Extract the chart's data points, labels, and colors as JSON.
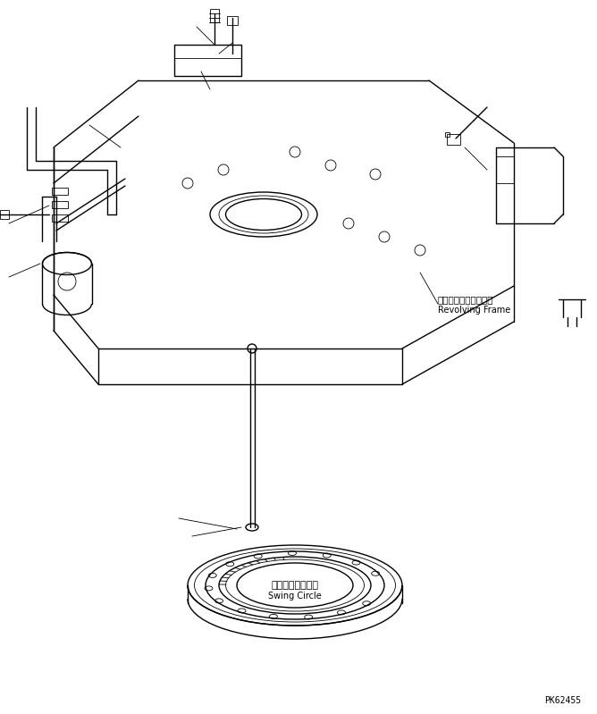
{
  "bg_color": "#ffffff",
  "line_color": "#000000",
  "line_width": 1.0,
  "thin_lw": 0.6,
  "label_revolving_frame_jp": "レボルビングフレーム",
  "label_revolving_frame_en": "Revolving Frame",
  "label_swing_circle_jp": "スイングサークル",
  "label_swing_circle_en": "Swing Circle",
  "label_part_number": "PK62455",
  "figsize": [
    6.68,
    7.99
  ],
  "dpi": 100
}
